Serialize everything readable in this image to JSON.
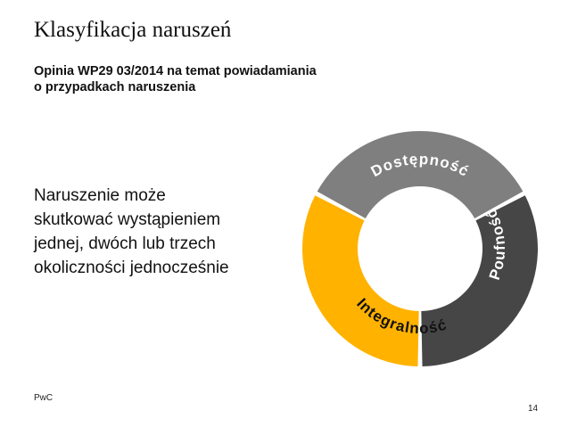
{
  "title": "Klasyfikacja naruszeń",
  "subtitle": {
    "line1": "Opinia WP29 03/2014 na temat powiadamiania",
    "line2": "o przypadkach naruszenia"
  },
  "body": {
    "lines": [
      "Naruszenie może",
      "skutkować wystąpieniem",
      "jednej, dwóch lub trzech",
      "okoliczności jednocześnie"
    ]
  },
  "footer": {
    "brand": "PwC",
    "page": "14"
  },
  "diagram": {
    "segments": [
      {
        "label": "Dostępność",
        "color": "#7f7f7f",
        "text_color": "#ffffff"
      },
      {
        "label": "Poufność",
        "color": "#464646",
        "text_color": "#ffffff"
      },
      {
        "label": "Integralność",
        "color": "#ffb200",
        "text_color": "#111111"
      }
    ]
  }
}
